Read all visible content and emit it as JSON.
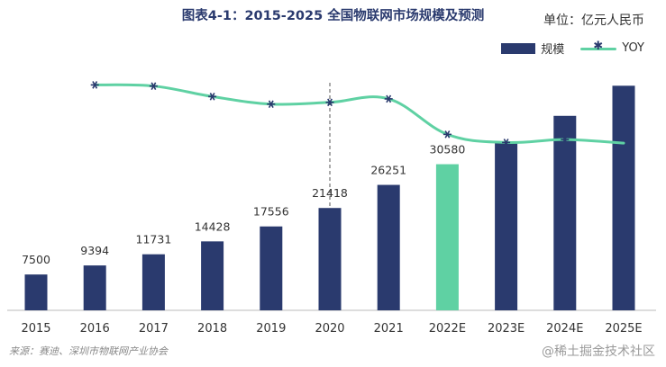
{
  "chart_data": {
    "type": "bar",
    "title": "图表4-1：2015-2025 全国物联网市场规模及预测",
    "unit_label": "单位：亿元人民币",
    "categories": [
      "2015",
      "2016",
      "2017",
      "2018",
      "2019",
      "2020",
      "2021",
      "2022E",
      "2023E",
      "2024E",
      "2025E"
    ],
    "series": [
      {
        "name": "规模",
        "type": "bar",
        "values": [
          7500,
          9394,
          11731,
          14428,
          17556,
          21418,
          26251,
          30580,
          35200,
          40700,
          47000
        ],
        "value_labels": [
          "7500",
          "9394",
          "11731",
          "14428",
          "17556",
          "21418",
          "26251",
          "30580",
          "",
          "",
          ""
        ],
        "color": "#2a3a6e",
        "highlight_index": 7,
        "highlight_color": "#5fd1a3"
      },
      {
        "name": "YOY",
        "type": "line",
        "values": [
          null,
          25.0,
          24.8,
          23.0,
          21.7,
          22.0,
          22.6,
          16.5,
          15.1,
          15.6,
          15.0
        ],
        "color": "#5fd1a3",
        "marker_color": "#2a3a6e"
      }
    ],
    "divider_after": "2020",
    "legend": "top-right",
    "grid": false
  },
  "source_text": "来源：赛迪、深圳市物联网产业协会",
  "watermark_text": "@稀土掘金技术社区"
}
